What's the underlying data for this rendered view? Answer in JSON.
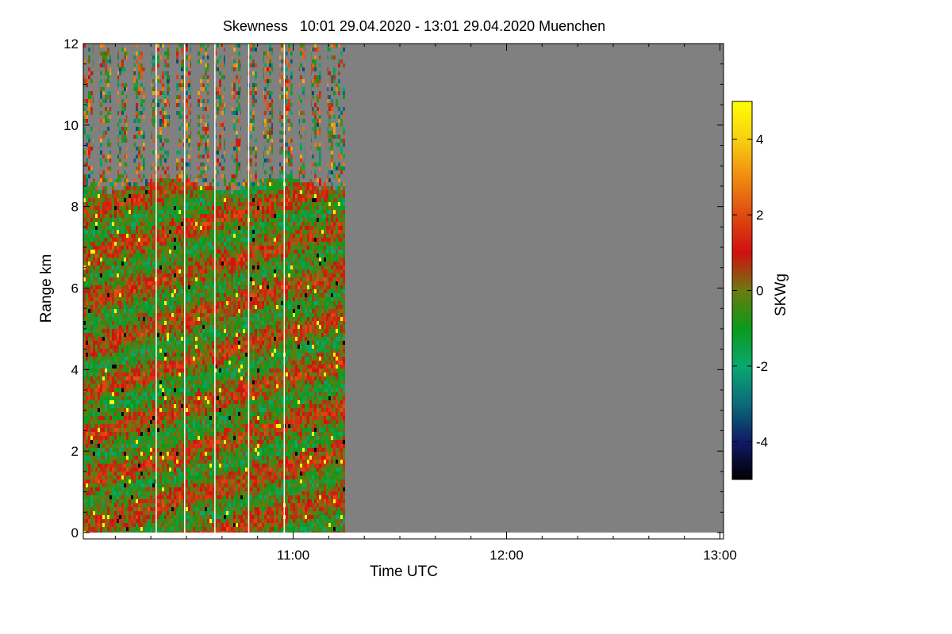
{
  "chart_data": {
    "type": "heatmap",
    "title": "Skewness   10:01 29.04.2020 - 13:01 29.04.2020 Muenchen",
    "xlabel": "Time UTC",
    "ylabel": "Range km",
    "colorbar_label": "SKWg",
    "x_range_minutes_utc": [
      601,
      781
    ],
    "x_ticks": [
      {
        "value": 660,
        "label": "11:00"
      },
      {
        "value": 720,
        "label": "12:00"
      },
      {
        "value": 780,
        "label": "13:00"
      }
    ],
    "ylim": [
      0,
      12
    ],
    "y_ticks": [
      {
        "value": 0,
        "label": "0"
      },
      {
        "value": 2,
        "label": "2"
      },
      {
        "value": 4,
        "label": "4"
      },
      {
        "value": 6,
        "label": "6"
      },
      {
        "value": 8,
        "label": "8"
      },
      {
        "value": 10,
        "label": "10"
      },
      {
        "value": 12,
        "label": "12"
      }
    ],
    "colorbar_range": [
      -5,
      5
    ],
    "colorbar_ticks": [
      {
        "value": 4,
        "label": "4"
      },
      {
        "value": 2,
        "label": "2"
      },
      {
        "value": 0,
        "label": "0"
      },
      {
        "value": -2,
        "label": "-2"
      },
      {
        "value": -4,
        "label": "-4"
      }
    ],
    "colormap": [
      {
        "value": -5,
        "color": "#000000"
      },
      {
        "value": -4,
        "color": "#101a66"
      },
      {
        "value": -3,
        "color": "#0a6b7a"
      },
      {
        "value": -2,
        "color": "#0aa870"
      },
      {
        "value": -1,
        "color": "#0a9a1a"
      },
      {
        "value": 0,
        "color": "#6b7a10"
      },
      {
        "value": 1,
        "color": "#d01010"
      },
      {
        "value": 2,
        "color": "#e04a10"
      },
      {
        "value": 3,
        "color": "#f08c10"
      },
      {
        "value": 4,
        "color": "#f8d010"
      },
      {
        "value": 5,
        "color": "#ffff00"
      }
    ],
    "no_data_color": "#808080",
    "data_end_minute": 674,
    "cloud_top_km_approx": 8.6,
    "measurement_gaps_minutes": [
      621.5,
      629.5,
      638,
      647.5,
      657.5
    ],
    "vertical_scan_breaks_minutes": [
      604.5,
      609.5,
      614,
      619,
      626,
      632,
      637,
      641.5,
      646,
      650.5,
      655,
      660.5,
      664,
      668.5
    ]
  }
}
